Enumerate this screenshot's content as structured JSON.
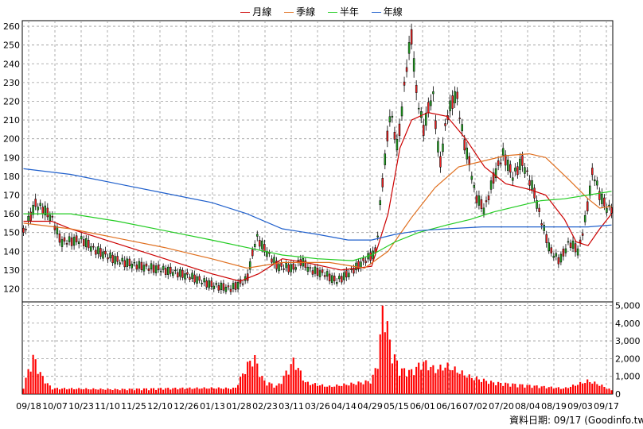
{
  "chart_data": {
    "type": "candlestick",
    "legend": [
      {
        "name": "月線",
        "color": "#cc0000"
      },
      {
        "name": "季線",
        "color": "#e07020"
      },
      {
        "name": "半年",
        "color": "#22cc22"
      },
      {
        "name": "年線",
        "color": "#2060cc"
      }
    ],
    "price_axis": {
      "ticks": [
        120,
        130,
        140,
        150,
        160,
        170,
        180,
        190,
        200,
        210,
        220,
        230,
        240,
        250,
        260
      ],
      "range": [
        113,
        263
      ]
    },
    "volume_axis": {
      "ticks": [
        0,
        1000,
        2000,
        3000,
        4000,
        5000
      ],
      "tick_labels": [
        "0",
        "1,000",
        "2,000",
        "3,000",
        "4,000",
        "5,000"
      ],
      "range": [
        0,
        5200
      ]
    },
    "x_labels": [
      "09/18",
      "10/07",
      "10/23",
      "11/10",
      "11/25",
      "12/10",
      "12/26",
      "01/13",
      "01/28",
      "02/23",
      "03/11",
      "03/26",
      "04/14",
      "04/29",
      "05/15",
      "06/01",
      "06/16",
      "07/02",
      "07/20",
      "08/04",
      "08/19",
      "09/03",
      "09/17"
    ],
    "n_bars": 245,
    "price_keypoints": [
      [
        0,
        150
      ],
      [
        5,
        165
      ],
      [
        8,
        163
      ],
      [
        12,
        158
      ],
      [
        16,
        145
      ],
      [
        25,
        146
      ],
      [
        30,
        141
      ],
      [
        40,
        135
      ],
      [
        50,
        132
      ],
      [
        60,
        130
      ],
      [
        70,
        127
      ],
      [
        80,
        122
      ],
      [
        88,
        120
      ],
      [
        95,
        125
      ],
      [
        99,
        148
      ],
      [
        102,
        142
      ],
      [
        108,
        132
      ],
      [
        115,
        131
      ],
      [
        118,
        135
      ],
      [
        122,
        130
      ],
      [
        128,
        128
      ],
      [
        133,
        124
      ],
      [
        138,
        128
      ],
      [
        143,
        133
      ],
      [
        150,
        140
      ],
      [
        152,
        170
      ],
      [
        156,
        215
      ],
      [
        159,
        195
      ],
      [
        163,
        240
      ],
      [
        165,
        255
      ],
      [
        167,
        225
      ],
      [
        170,
        205
      ],
      [
        174,
        225
      ],
      [
        177,
        185
      ],
      [
        180,
        212
      ],
      [
        184,
        225
      ],
      [
        187,
        200
      ],
      [
        190,
        185
      ],
      [
        192,
        170
      ],
      [
        196,
        162
      ],
      [
        200,
        180
      ],
      [
        204,
        192
      ],
      [
        208,
        180
      ],
      [
        212,
        188
      ],
      [
        217,
        172
      ],
      [
        220,
        157
      ],
      [
        224,
        140
      ],
      [
        228,
        135
      ],
      [
        232,
        145
      ],
      [
        236,
        140
      ],
      [
        239,
        158
      ],
      [
        242,
        183
      ],
      [
        245,
        170
      ],
      [
        248,
        163
      ],
      [
        250,
        163
      ]
    ],
    "volume_keypoints": [
      [
        0,
        400
      ],
      [
        4,
        2000
      ],
      [
        8,
        900
      ],
      [
        12,
        300
      ],
      [
        25,
        280
      ],
      [
        40,
        250
      ],
      [
        60,
        300
      ],
      [
        80,
        320
      ],
      [
        90,
        300
      ],
      [
        95,
        1500
      ],
      [
        98,
        2000
      ],
      [
        102,
        700
      ],
      [
        108,
        400
      ],
      [
        115,
        1800
      ],
      [
        120,
        600
      ],
      [
        130,
        400
      ],
      [
        140,
        550
      ],
      [
        148,
        700
      ],
      [
        151,
        1900
      ],
      [
        153,
        5000
      ],
      [
        156,
        2500
      ],
      [
        160,
        1300
      ],
      [
        165,
        1200
      ],
      [
        170,
        1700
      ],
      [
        175,
        1300
      ],
      [
        180,
        1500
      ],
      [
        190,
        900
      ],
      [
        200,
        600
      ],
      [
        210,
        500
      ],
      [
        220,
        400
      ],
      [
        230,
        300
      ],
      [
        240,
        700
      ],
      [
        245,
        500
      ],
      [
        250,
        200
      ]
    ],
    "ma_series": [
      {
        "name": "月線",
        "color": "#cc0000",
        "points": [
          [
            0,
            156
          ],
          [
            12,
            156
          ],
          [
            20,
            152
          ],
          [
            40,
            144
          ],
          [
            60,
            136
          ],
          [
            80,
            128
          ],
          [
            92,
            124
          ],
          [
            100,
            128
          ],
          [
            110,
            136
          ],
          [
            120,
            134
          ],
          [
            135,
            130
          ],
          [
            148,
            132
          ],
          [
            155,
            160
          ],
          [
            160,
            195
          ],
          [
            165,
            210
          ],
          [
            172,
            214
          ],
          [
            180,
            212
          ],
          [
            188,
            200
          ],
          [
            196,
            185
          ],
          [
            205,
            176
          ],
          [
            215,
            173
          ],
          [
            222,
            170
          ],
          [
            230,
            157
          ],
          [
            235,
            145
          ],
          [
            240,
            143
          ],
          [
            245,
            152
          ],
          [
            250,
            160
          ]
        ]
      },
      {
        "name": "季線",
        "color": "#e07020",
        "points": [
          [
            0,
            155
          ],
          [
            20,
            152
          ],
          [
            40,
            147
          ],
          [
            60,
            142
          ],
          [
            80,
            136
          ],
          [
            95,
            131
          ],
          [
            110,
            134
          ],
          [
            130,
            134
          ],
          [
            145,
            131
          ],
          [
            155,
            140
          ],
          [
            165,
            158
          ],
          [
            175,
            174
          ],
          [
            185,
            185
          ],
          [
            195,
            188
          ],
          [
            205,
            191
          ],
          [
            215,
            192
          ],
          [
            222,
            190
          ],
          [
            232,
            178
          ],
          [
            240,
            168
          ],
          [
            245,
            163
          ],
          [
            250,
            164
          ]
        ]
      },
      {
        "name": "半年",
        "color": "#22cc22",
        "points": [
          [
            0,
            160
          ],
          [
            20,
            160
          ],
          [
            40,
            156
          ],
          [
            60,
            151
          ],
          [
            80,
            146
          ],
          [
            95,
            142
          ],
          [
            110,
            138
          ],
          [
            125,
            136
          ],
          [
            140,
            135
          ],
          [
            148,
            138
          ],
          [
            158,
            145
          ],
          [
            168,
            150
          ],
          [
            180,
            154
          ],
          [
            190,
            157
          ],
          [
            200,
            161
          ],
          [
            210,
            164
          ],
          [
            220,
            167
          ],
          [
            230,
            168
          ],
          [
            240,
            170
          ],
          [
            250,
            172
          ]
        ]
      },
      {
        "name": "年線",
        "color": "#2060cc",
        "points": [
          [
            0,
            184
          ],
          [
            20,
            181
          ],
          [
            40,
            176
          ],
          [
            60,
            171
          ],
          [
            80,
            166
          ],
          [
            95,
            160
          ],
          [
            110,
            152
          ],
          [
            125,
            149
          ],
          [
            138,
            146
          ],
          [
            148,
            146
          ],
          [
            158,
            149
          ],
          [
            168,
            151
          ],
          [
            180,
            152
          ],
          [
            195,
            153
          ],
          [
            210,
            153
          ],
          [
            225,
            153
          ],
          [
            240,
            153
          ],
          [
            250,
            154
          ]
        ]
      }
    ]
  },
  "footer": {
    "text": "資料日期: 09/17 (Goodinfo.tw)"
  }
}
